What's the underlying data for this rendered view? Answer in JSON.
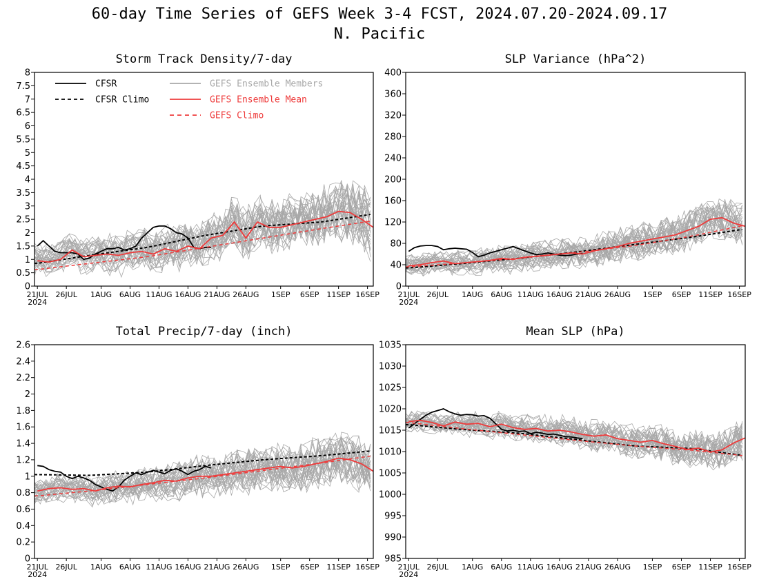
{
  "figure": {
    "title": "60-day Time Series of GEFS Week 3-4 FCST, 2024.07.20-2024.09.17",
    "subtitle": "N. Pacific"
  },
  "colors": {
    "cfsr": "#000000",
    "ens_member": "#a8a8a8",
    "ens_mean": "#ee3b3b",
    "gefs_climo": "#ee3b3b"
  },
  "legend": {
    "cfsr": "CFSR",
    "cfsr_climo": "CFSR Climo",
    "members": "GEFS Ensemble Members",
    "mean": "GEFS Ensemble Mean",
    "gefs_climo": "GEFS Climo",
    "placement": "top-left of first panel"
  },
  "x_axis": {
    "tick_labels": [
      "21JUL",
      "26JUL",
      "1AUG",
      "6AUG",
      "11AUG",
      "16AUG",
      "21AUG",
      "26AUG",
      "1SEP",
      "6SEP",
      "11SEP",
      "16SEP"
    ],
    "tick_days": [
      1,
      6,
      12,
      17,
      22,
      27,
      32,
      37,
      43,
      48,
      53,
      58
    ],
    "year_label": "2024",
    "range_days": [
      0.5,
      59
    ]
  },
  "chart_data": [
    {
      "type": "line",
      "title": "Storm Track Density/7-day",
      "ylim": [
        0,
        8
      ],
      "yticks": [
        "0",
        "0.5",
        "1",
        "1.5",
        "2",
        "2.5",
        "3",
        "3.5",
        "4",
        "4.5",
        "5",
        "5.5",
        "6",
        "6.5",
        "7",
        "7.5",
        "8"
      ],
      "members_count": 31,
      "series": [
        {
          "name": "CFSR",
          "x": [
            1,
            2,
            3,
            4,
            5,
            6,
            7,
            8,
            9,
            10,
            11,
            12,
            13,
            14,
            15,
            16,
            17,
            18,
            19,
            20,
            21,
            22,
            23,
            24,
            25,
            26,
            27,
            28,
            29,
            30,
            31
          ],
          "y": [
            1.5,
            1.7,
            1.5,
            1.3,
            1.25,
            1.25,
            1.25,
            1.2,
            1.0,
            1.05,
            1.2,
            1.3,
            1.4,
            1.4,
            1.45,
            1.35,
            1.4,
            1.5,
            1.8,
            2.0,
            2.2,
            2.25,
            2.25,
            2.15,
            2.0,
            1.95,
            1.8,
            1.45,
            1.4,
            1.45,
            1.45
          ]
        },
        {
          "name": "CFSR Climo",
          "x": [
            1,
            10,
            20,
            30,
            40,
            50,
            59
          ],
          "y": [
            0.85,
            1.15,
            1.45,
            1.9,
            2.25,
            2.4,
            2.7
          ]
        },
        {
          "name": "GEFS Ensemble Mean",
          "x": [
            1,
            3,
            5,
            7,
            9,
            11,
            13,
            15,
            17,
            19,
            21,
            23,
            25,
            27,
            29,
            31,
            33,
            35,
            37,
            39,
            41,
            43,
            45,
            47,
            49,
            51,
            53,
            55,
            57,
            59
          ],
          "y": [
            0.95,
            0.9,
            1.0,
            1.35,
            1.1,
            1.15,
            1.2,
            1.15,
            1.25,
            1.3,
            1.2,
            1.4,
            1.3,
            1.5,
            1.4,
            1.8,
            1.9,
            2.4,
            1.8,
            2.4,
            2.2,
            2.2,
            2.3,
            2.4,
            2.5,
            2.6,
            2.8,
            2.75,
            2.5,
            2.2
          ]
        },
        {
          "name": "GEFS Climo",
          "x": [
            1,
            10,
            20,
            30,
            40,
            50,
            59
          ],
          "y": [
            0.62,
            0.85,
            1.1,
            1.45,
            1.8,
            2.15,
            2.45
          ]
        }
      ]
    },
    {
      "type": "line",
      "title": "SLP Variance (hPa^2)",
      "ylim": [
        0,
        400
      ],
      "yticks": [
        "0",
        "40",
        "80",
        "120",
        "160",
        "200",
        "240",
        "280",
        "320",
        "360",
        "400"
      ],
      "members_count": 31,
      "series": [
        {
          "name": "CFSR",
          "x": [
            1,
            2,
            3,
            4,
            5,
            6,
            7,
            8,
            9,
            10,
            11,
            12,
            13,
            14,
            15,
            16,
            17,
            18,
            19,
            20,
            21,
            22,
            23,
            24,
            25,
            26,
            27,
            28,
            29,
            30,
            31
          ],
          "y": [
            65,
            72,
            75,
            76,
            76,
            74,
            68,
            70,
            71,
            70,
            69,
            63,
            55,
            58,
            62,
            65,
            68,
            71,
            74,
            70,
            66,
            62,
            59,
            60,
            62,
            60,
            58,
            57,
            58,
            60,
            61
          ]
        },
        {
          "name": "CFSR Climo",
          "x": [
            1,
            10,
            20,
            30,
            40,
            50,
            59
          ],
          "y": [
            34,
            42,
            52,
            64,
            78,
            92,
            107
          ]
        },
        {
          "name": "GEFS Ensemble Mean",
          "x": [
            1,
            3,
            5,
            7,
            9,
            11,
            13,
            15,
            17,
            19,
            21,
            23,
            25,
            27,
            29,
            31,
            33,
            35,
            37,
            39,
            41,
            43,
            45,
            47,
            49,
            51,
            53,
            55,
            57,
            59
          ],
          "y": [
            38,
            40,
            44,
            47,
            42,
            44,
            46,
            48,
            52,
            50,
            54,
            56,
            58,
            60,
            62,
            60,
            66,
            70,
            74,
            80,
            84,
            88,
            92,
            96,
            104,
            112,
            125,
            128,
            118,
            112
          ]
        },
        {
          "name": "GEFS Climo",
          "x": [
            1,
            10,
            20,
            30,
            40,
            50,
            59
          ],
          "y": [
            36,
            43,
            52,
            63,
            76,
            94,
            114
          ]
        }
      ]
    },
    {
      "type": "line",
      "title": "Total Precip/7-day (inch)",
      "ylim": [
        0,
        2.6
      ],
      "yticks": [
        "0",
        "0.2",
        "0.4",
        "0.6",
        "0.8",
        "1",
        "1.2",
        "1.4",
        "1.6",
        "1.8",
        "2",
        "2.2",
        "2.4",
        "2.6"
      ],
      "members_count": 31,
      "series": [
        {
          "name": "CFSR",
          "x": [
            1,
            2,
            3,
            4,
            5,
            6,
            7,
            8,
            9,
            10,
            11,
            12,
            13,
            14,
            15,
            16,
            17,
            18,
            19,
            20,
            21,
            22,
            23,
            24,
            25,
            26,
            27,
            28,
            29,
            30,
            31
          ],
          "y": [
            1.13,
            1.12,
            1.08,
            1.06,
            1.05,
            1.0,
            0.97,
            1.0,
            0.98,
            0.95,
            0.9,
            0.87,
            0.84,
            0.82,
            0.87,
            0.95,
            1.0,
            1.04,
            1.02,
            1.05,
            1.07,
            1.05,
            1.03,
            1.07,
            1.09,
            1.06,
            1.02,
            1.06,
            1.08,
            1.12,
            1.1
          ]
        },
        {
          "name": "CFSR Climo",
          "x": [
            1,
            10,
            20,
            30,
            40,
            50,
            59
          ],
          "y": [
            1.02,
            1.01,
            1.05,
            1.13,
            1.2,
            1.25,
            1.31
          ]
        },
        {
          "name": "GEFS Ensemble Mean",
          "x": [
            1,
            3,
            5,
            7,
            9,
            11,
            13,
            15,
            17,
            19,
            21,
            23,
            25,
            27,
            29,
            31,
            33,
            35,
            37,
            39,
            41,
            43,
            45,
            47,
            49,
            51,
            53,
            55,
            57,
            59
          ],
          "y": [
            0.82,
            0.85,
            0.86,
            0.84,
            0.85,
            0.82,
            0.86,
            0.88,
            0.87,
            0.9,
            0.92,
            0.95,
            0.94,
            0.98,
            1.0,
            1.0,
            1.02,
            1.04,
            1.06,
            1.08,
            1.1,
            1.12,
            1.1,
            1.12,
            1.15,
            1.18,
            1.22,
            1.2,
            1.15,
            1.06
          ]
        },
        {
          "name": "GEFS Climo",
          "x": [
            1,
            10,
            20,
            30,
            40,
            50,
            59
          ],
          "y": [
            0.76,
            0.82,
            0.9,
            0.98,
            1.07,
            1.16,
            1.25
          ]
        }
      ]
    },
    {
      "type": "line",
      "title": "Mean SLP (hPa)",
      "ylim": [
        985,
        1035
      ],
      "yticks": [
        "985",
        "990",
        "995",
        "1000",
        "1005",
        "1010",
        "1015",
        "1020",
        "1025",
        "1030",
        "1035"
      ],
      "members_count": 31,
      "series": [
        {
          "name": "CFSR",
          "x": [
            1,
            2,
            3,
            4,
            5,
            6,
            7,
            8,
            9,
            10,
            11,
            12,
            13,
            14,
            15,
            16,
            17,
            18,
            19,
            20,
            21,
            22,
            23,
            24,
            25,
            26,
            27,
            28,
            29,
            30,
            31
          ],
          "y": [
            1015.5,
            1016.5,
            1017.5,
            1018.5,
            1019.2,
            1019.6,
            1020.0,
            1019.3,
            1018.8,
            1018.5,
            1018.7,
            1018.6,
            1018.3,
            1018.4,
            1017.8,
            1016.5,
            1015.2,
            1014.8,
            1015.0,
            1014.7,
            1014.8,
            1014.2,
            1014.5,
            1014.3,
            1014.0,
            1014.1,
            1013.8,
            1013.5,
            1013.4,
            1013.2,
            1013.0
          ]
        },
        {
          "name": "CFSR Climo",
          "x": [
            1,
            10,
            20,
            30,
            40,
            50,
            59
          ],
          "y": [
            1016.3,
            1015.2,
            1014.3,
            1012.8,
            1011.3,
            1010.7,
            1009.0
          ]
        },
        {
          "name": "GEFS Ensemble Mean",
          "x": [
            1,
            3,
            5,
            7,
            9,
            11,
            13,
            15,
            17,
            19,
            21,
            23,
            25,
            27,
            29,
            31,
            33,
            35,
            37,
            39,
            41,
            43,
            45,
            47,
            49,
            51,
            53,
            55,
            57,
            59
          ],
          "y": [
            1017.0,
            1017.3,
            1016.8,
            1016.0,
            1016.9,
            1016.4,
            1016.6,
            1015.8,
            1016.4,
            1015.6,
            1015.2,
            1015.4,
            1014.8,
            1015.0,
            1014.6,
            1014.0,
            1013.6,
            1013.9,
            1013.0,
            1012.6,
            1012.2,
            1012.6,
            1011.8,
            1011.2,
            1010.5,
            1010.8,
            1009.9,
            1010.4,
            1012.0,
            1013.2
          ]
        },
        {
          "name": "GEFS Climo",
          "x": [
            1,
            10,
            20,
            30,
            40,
            50,
            59
          ],
          "y": [
            1016.8,
            1015.4,
            1014.0,
            1012.6,
            1011.3,
            1010.3,
            1009.0
          ]
        }
      ]
    }
  ]
}
